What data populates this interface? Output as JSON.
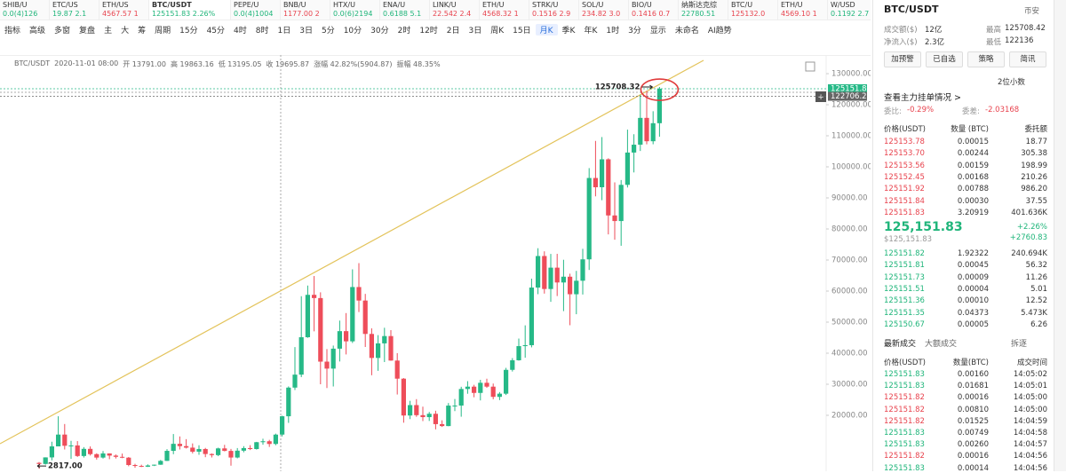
{
  "tickers": [
    {
      "name": "SHIB/U",
      "price": "0.0(4)126",
      "side": "up"
    },
    {
      "name": "ETC/US",
      "price": "19.87 2.1",
      "side": "up"
    },
    {
      "name": "ETH/US",
      "price": "4567.57 1",
      "side": "down"
    },
    {
      "name": "BTC/USDT",
      "price": "125151.83 2.26%",
      "side": "up"
    },
    {
      "name": "PEPE/U",
      "price": "0.0(4)1004",
      "side": "up"
    },
    {
      "name": "BNB/U",
      "price": "1177.00 2",
      "side": "down"
    },
    {
      "name": "HTX/U",
      "price": "0.0(6)2194",
      "side": "up"
    },
    {
      "name": "ENA/U",
      "price": "0.6188 5.1",
      "side": "up"
    },
    {
      "name": "LINK/U",
      "price": "22.542 2.4",
      "side": "down"
    },
    {
      "name": "ETH/U",
      "price": "4568.32 1",
      "side": "down"
    },
    {
      "name": "STRK/U",
      "price": "0.1516 2.9",
      "side": "down"
    },
    {
      "name": "SOL/U",
      "price": "234.82 3.0",
      "side": "down"
    },
    {
      "name": "BIO/U",
      "price": "0.1416 0.7",
      "side": "down"
    },
    {
      "name": "纳斯达克综",
      "price": "22780.51 0.0",
      "side": "up"
    },
    {
      "name": "BTC/U",
      "price": "125132.0",
      "side": "down"
    },
    {
      "name": "ETH/U",
      "price": "4569.10 1",
      "side": "down"
    },
    {
      "name": "W/USD",
      "price": "0.1192 2.7",
      "side": "up"
    }
  ],
  "toolbar": [
    "指标",
    "高级",
    "多窗",
    "复盘",
    "主",
    "大",
    "筹",
    "周期",
    "15分",
    "45分",
    "4时",
    "8时",
    "1日",
    "3日",
    "5分",
    "10分",
    "30分",
    "2时",
    "12时",
    "2日",
    "3日",
    "周K",
    "15日",
    "月K",
    "季K",
    "年K",
    "1时",
    "3分",
    "显示",
    "未命名",
    "AI趋势"
  ],
  "active_tool": "月K",
  "chart": {
    "type": "candlestick",
    "symbol": "BTC/USDT",
    "info": [
      "2020-11-01 08:00",
      "开 13791.00",
      "高 19863.16",
      "低 13195.05",
      "收 19695.87",
      "涨幅 42.82%(5904.87)",
      "振幅 48.35%"
    ],
    "up_color": "#26b987",
    "down_color": "#ee4d5a",
    "ylim": [
      2000,
      134286
    ],
    "yticks": [
      {
        "value": 20000,
        "label": "20000.00"
      },
      {
        "value": 30000,
        "label": "30000.00"
      },
      {
        "value": 40000,
        "label": "40000.00"
      },
      {
        "value": 50000,
        "label": "50000.00"
      },
      {
        "value": 60000,
        "label": "60000.00"
      },
      {
        "value": 70000,
        "label": "70000.00"
      },
      {
        "value": 80000,
        "label": "80000.00"
      },
      {
        "value": 90000,
        "label": "90000.00"
      },
      {
        "value": 100000,
        "label": "100000.00"
      },
      {
        "value": 110000,
        "label": "110000.00"
      },
      {
        "value": 120000,
        "label": "120000.00"
      },
      {
        "value": 130000,
        "label": "130000.00"
      }
    ],
    "price_tags": [
      125151.83,
      122706.26
    ],
    "high_label": "125708.32",
    "low_label": "2817.00",
    "candles": [
      [
        4700,
        4980,
        2817,
        4340
      ],
      [
        4340,
        6470,
        4110,
        6450
      ],
      [
        6450,
        11500,
        5500,
        10000
      ],
      [
        10000,
        19700,
        10400,
        13800
      ],
      [
        13800,
        17200,
        9000,
        10200
      ],
      [
        10200,
        11800,
        6000,
        10300
      ],
      [
        10300,
        11700,
        6600,
        6900
      ],
      [
        6900,
        9760,
        6400,
        9200
      ],
      [
        9200,
        9990,
        7060,
        7500
      ],
      [
        7500,
        7780,
        5750,
        6390
      ],
      [
        6390,
        8500,
        6070,
        7730
      ],
      [
        7730,
        7760,
        5880,
        7030
      ],
      [
        7030,
        7400,
        6100,
        6630
      ],
      [
        6630,
        7680,
        6200,
        6370
      ],
      [
        6370,
        6580,
        3600,
        4000
      ],
      [
        4000,
        4400,
        3120,
        3700
      ],
      [
        3700,
        4100,
        3350,
        3450
      ],
      [
        3450,
        4200,
        3370,
        3860
      ],
      [
        3860,
        4140,
        3670,
        4100
      ],
      [
        4100,
        5630,
        4060,
        5330
      ],
      [
        5330,
        9100,
        5320,
        8560
      ],
      [
        8560,
        13970,
        7480,
        10820
      ],
      [
        10820,
        13200,
        9000,
        10080
      ],
      [
        10080,
        12330,
        9320,
        9590
      ],
      [
        9590,
        10950,
        7730,
        8290
      ],
      [
        8290,
        10360,
        7300,
        9150
      ],
      [
        9150,
        9510,
        6520,
        7540
      ],
      [
        7540,
        7740,
        6430,
        7190
      ],
      [
        7190,
        9580,
        6850,
        9350
      ],
      [
        9350,
        10500,
        8400,
        8540
      ],
      [
        8540,
        9190,
        3780,
        6410
      ],
      [
        6410,
        9460,
        6150,
        8620
      ],
      [
        8620,
        10070,
        8100,
        9450
      ],
      [
        9450,
        10380,
        8820,
        9140
      ],
      [
        9140,
        11450,
        8970,
        11350
      ],
      [
        11350,
        12480,
        10530,
        11650
      ],
      [
        11650,
        12100,
        9820,
        10780
      ],
      [
        10780,
        14100,
        10370,
        13790
      ],
      [
        13791,
        19863.16,
        13195.05,
        19695.87
      ],
      [
        19695,
        29300,
        17570,
        28920
      ],
      [
        28920,
        41950,
        28130,
        33100
      ],
      [
        33100,
        58350,
        32300,
        45140
      ],
      [
        45140,
        61780,
        44950,
        58790
      ],
      [
        58790,
        64850,
        47040,
        57750
      ],
      [
        57750,
        59600,
        30000,
        37280
      ],
      [
        37280,
        41330,
        28800,
        35040
      ],
      [
        35040,
        42450,
        29280,
        41460
      ],
      [
        41460,
        50500,
        37330,
        47100
      ],
      [
        47100,
        52920,
        39600,
        43820
      ],
      [
        43820,
        67000,
        43280,
        61300
      ],
      [
        61300,
        69000,
        53250,
        56950
      ],
      [
        56950,
        59100,
        42000,
        46200
      ],
      [
        46200,
        48000,
        32900,
        38470
      ],
      [
        38470,
        45820,
        34320,
        43160
      ],
      [
        43160,
        48190,
        37150,
        45510
      ],
      [
        45510,
        47440,
        37580,
        37630
      ],
      [
        37630,
        40020,
        26700,
        31800
      ],
      [
        31800,
        31990,
        17620,
        19940
      ],
      [
        19940,
        24670,
        18780,
        23290
      ],
      [
        23290,
        25210,
        19520,
        20050
      ],
      [
        20050,
        22800,
        18150,
        19420
      ],
      [
        19420,
        21080,
        18190,
        20490
      ],
      [
        20490,
        21480,
        15480,
        17160
      ],
      [
        17160,
        18390,
        16260,
        16540
      ],
      [
        16540,
        23950,
        16490,
        23130
      ],
      [
        23130,
        25250,
        21350,
        23140
      ],
      [
        23140,
        29190,
        19550,
        28480
      ],
      [
        28480,
        31000,
        26940,
        29230
      ],
      [
        29230,
        29820,
        25810,
        27210
      ],
      [
        27210,
        31430,
        24800,
        30470
      ],
      [
        30470,
        31800,
        28860,
        29230
      ],
      [
        29230,
        30230,
        25160,
        25940
      ],
      [
        25940,
        27480,
        24900,
        26960
      ],
      [
        26960,
        35280,
        26540,
        34640
      ],
      [
        34640,
        38420,
        34100,
        37720
      ],
      [
        37720,
        44700,
        37620,
        42280
      ],
      [
        42280,
        48970,
        38550,
        42580
      ],
      [
        42580,
        64000,
        41880,
        61130
      ],
      [
        61130,
        73800,
        59000,
        71290
      ],
      [
        71290,
        72800,
        59190,
        60670
      ],
      [
        60670,
        71980,
        56550,
        67540
      ],
      [
        67540,
        71990,
        58400,
        62770
      ],
      [
        62770,
        70080,
        53550,
        64630
      ],
      [
        64630,
        65600,
        49000,
        58980
      ],
      [
        58980,
        66500,
        52550,
        63330
      ],
      [
        63330,
        73620,
        58900,
        70220
      ],
      [
        70220,
        99590,
        66800,
        96410
      ],
      [
        96410,
        108350,
        90500,
        93430
      ],
      [
        93430,
        109590,
        89260,
        102430
      ],
      [
        102430,
        102750,
        78250,
        84350
      ],
      [
        84350,
        95000,
        76550,
        82550
      ],
      [
        82550,
        95750,
        74590,
        94200
      ],
      [
        94200,
        111980,
        93350,
        104600
      ],
      [
        104600,
        110500,
        98200,
        107130
      ],
      [
        107130,
        123200,
        105100,
        115760
      ],
      [
        115760,
        124470,
        107250,
        108240
      ],
      [
        108240,
        117900,
        107270,
        114050
      ],
      [
        114050,
        125708.32,
        109700,
        125151.83
      ]
    ]
  },
  "panel": {
    "symbol": "BTC/USDT",
    "exchange": "币安",
    "stats": [
      [
        "成交额($)",
        "12亿",
        "最高",
        "125708.42"
      ],
      [
        "净流入($)",
        "2.3亿",
        "最低",
        "122136"
      ]
    ],
    "buttons": [
      "加预警",
      "已自选",
      "策略",
      "简讯"
    ],
    "precision": "2位小数",
    "depth_link": "查看主力挂单情况 >",
    "ratio": [
      "委比:",
      "-0.29%",
      "委差:",
      "-2.03168"
    ],
    "book_header": [
      "价格(USDT)",
      "数量 (BTC)",
      "委托额"
    ],
    "asks": [
      [
        "125153.78",
        "0.00015",
        "18.77"
      ],
      [
        "125153.70",
        "0.00244",
        "305.38"
      ],
      [
        "125153.56",
        "0.00159",
        "198.99"
      ],
      [
        "125152.45",
        "0.00168",
        "210.26"
      ],
      [
        "125151.92",
        "0.00788",
        "986.20"
      ],
      [
        "125151.84",
        "0.00030",
        "37.55"
      ],
      [
        "125151.83",
        "3.20919",
        "401.636K"
      ]
    ],
    "last": {
      "price": "125,151.83",
      "usd": "$125,151.83",
      "pct": "+2.26%",
      "chg": "+2760.83"
    },
    "bids": [
      [
        "125151.82",
        "1.92322",
        "240.694K"
      ],
      [
        "125151.81",
        "0.00045",
        "56.32"
      ],
      [
        "125151.73",
        "0.00009",
        "11.26"
      ],
      [
        "125151.51",
        "0.00004",
        "5.01"
      ],
      [
        "125151.36",
        "0.00010",
        "12.52"
      ],
      [
        "125151.35",
        "0.04373",
        "5.473K"
      ],
      [
        "125150.67",
        "0.00005",
        "6.26"
      ]
    ],
    "tabs": [
      "最新成交",
      "大额成交",
      "拆逐"
    ],
    "trade_header": [
      "价格(USDT)",
      "数量(BTC)",
      "成交时间"
    ],
    "trades": [
      {
        "price": "125151.83",
        "qty": "0.00160",
        "time": "14:05:02",
        "side": "up"
      },
      {
        "price": "125151.83",
        "qty": "0.01681",
        "time": "14:05:01",
        "side": "up"
      },
      {
        "price": "125151.82",
        "qty": "0.00016",
        "time": "14:05:00",
        "side": "down"
      },
      {
        "price": "125151.82",
        "qty": "0.00810",
        "time": "14:05:00",
        "side": "down"
      },
      {
        "price": "125151.82",
        "qty": "0.01525",
        "time": "14:04:59",
        "side": "down"
      },
      {
        "price": "125151.83",
        "qty": "0.00749",
        "time": "14:04:58",
        "side": "up"
      },
      {
        "price": "125151.83",
        "qty": "0.00260",
        "time": "14:04:57",
        "side": "up"
      },
      {
        "price": "125151.82",
        "qty": "0.00016",
        "time": "14:04:56",
        "side": "down"
      },
      {
        "price": "125151.83",
        "qty": "0.00014",
        "time": "14:04:56",
        "side": "up"
      }
    ]
  }
}
